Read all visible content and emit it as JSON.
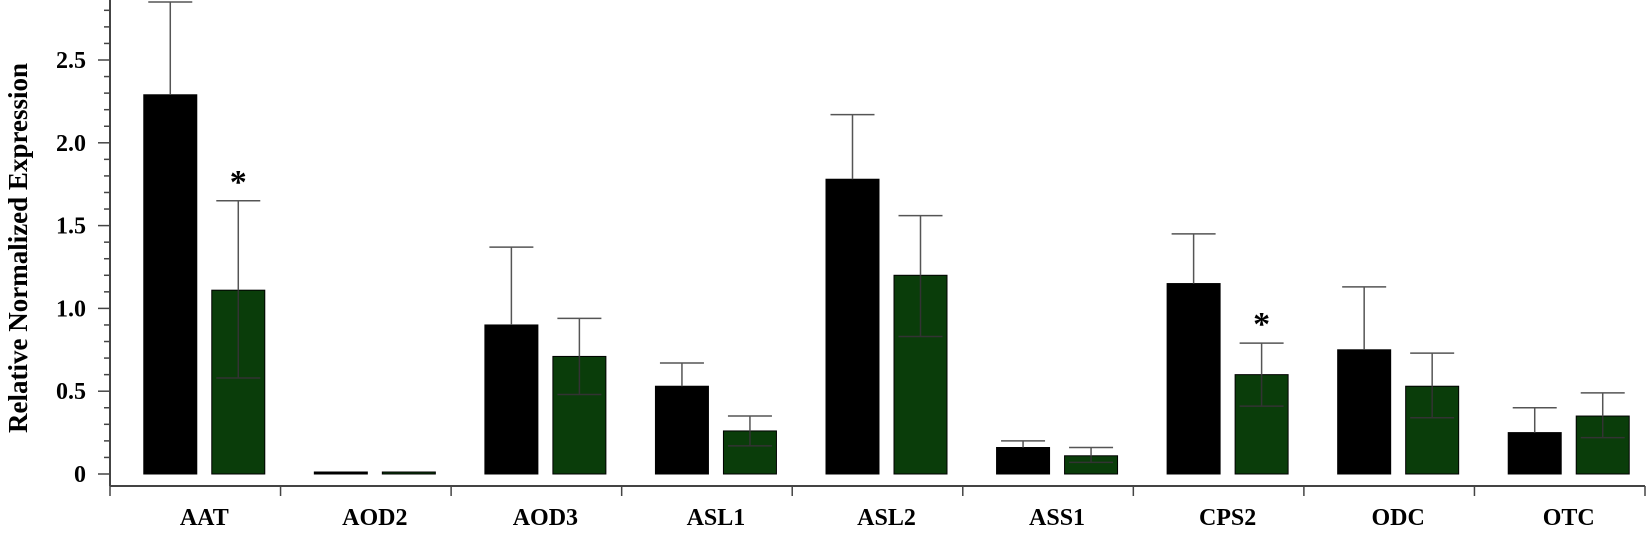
{
  "chart_data": {
    "type": "bar",
    "title": "",
    "xlabel": "",
    "ylabel": "Relative Normalized Expression",
    "ylim": [
      0,
      2.85
    ],
    "yticks": [
      "0",
      "0.5",
      "1.0",
      "1.5",
      "2.0",
      "2.5"
    ],
    "ytick_values": [
      0,
      0.5,
      1.0,
      1.5,
      2.0,
      2.5
    ],
    "grid": false,
    "legend": "none",
    "categories": [
      "AAT",
      "AOD2",
      "AOD3",
      "ASL1",
      "ASL2",
      "ASS1",
      "CPS2",
      "ODC",
      "OTC"
    ],
    "series": [
      {
        "color": "#000000",
        "values": [
          2.29,
          0.01,
          0.9,
          0.53,
          1.78,
          0.16,
          1.15,
          0.75,
          0.25
        ],
        "error_upper": [
          2.85,
          0.01,
          1.37,
          0.67,
          2.17,
          0.2,
          1.45,
          1.13,
          0.4
        ],
        "error_lower": [
          null,
          null,
          null,
          null,
          null,
          null,
          null,
          null,
          null
        ]
      },
      {
        "color": "#0a3d0a",
        "values": [
          1.11,
          0.005,
          0.71,
          0.26,
          1.2,
          0.11,
          0.6,
          0.53,
          0.35
        ],
        "error_upper": [
          1.65,
          0.005,
          0.94,
          0.35,
          1.56,
          0.16,
          0.79,
          0.73,
          0.49
        ],
        "error_lower": [
          0.58,
          null,
          0.48,
          0.17,
          0.83,
          0.07,
          0.41,
          0.34,
          0.22
        ]
      }
    ],
    "annotations": [
      {
        "text": "*",
        "category": "AAT",
        "series_index": 1
      },
      {
        "text": "*",
        "category": "CPS2",
        "series_index": 1
      }
    ]
  }
}
